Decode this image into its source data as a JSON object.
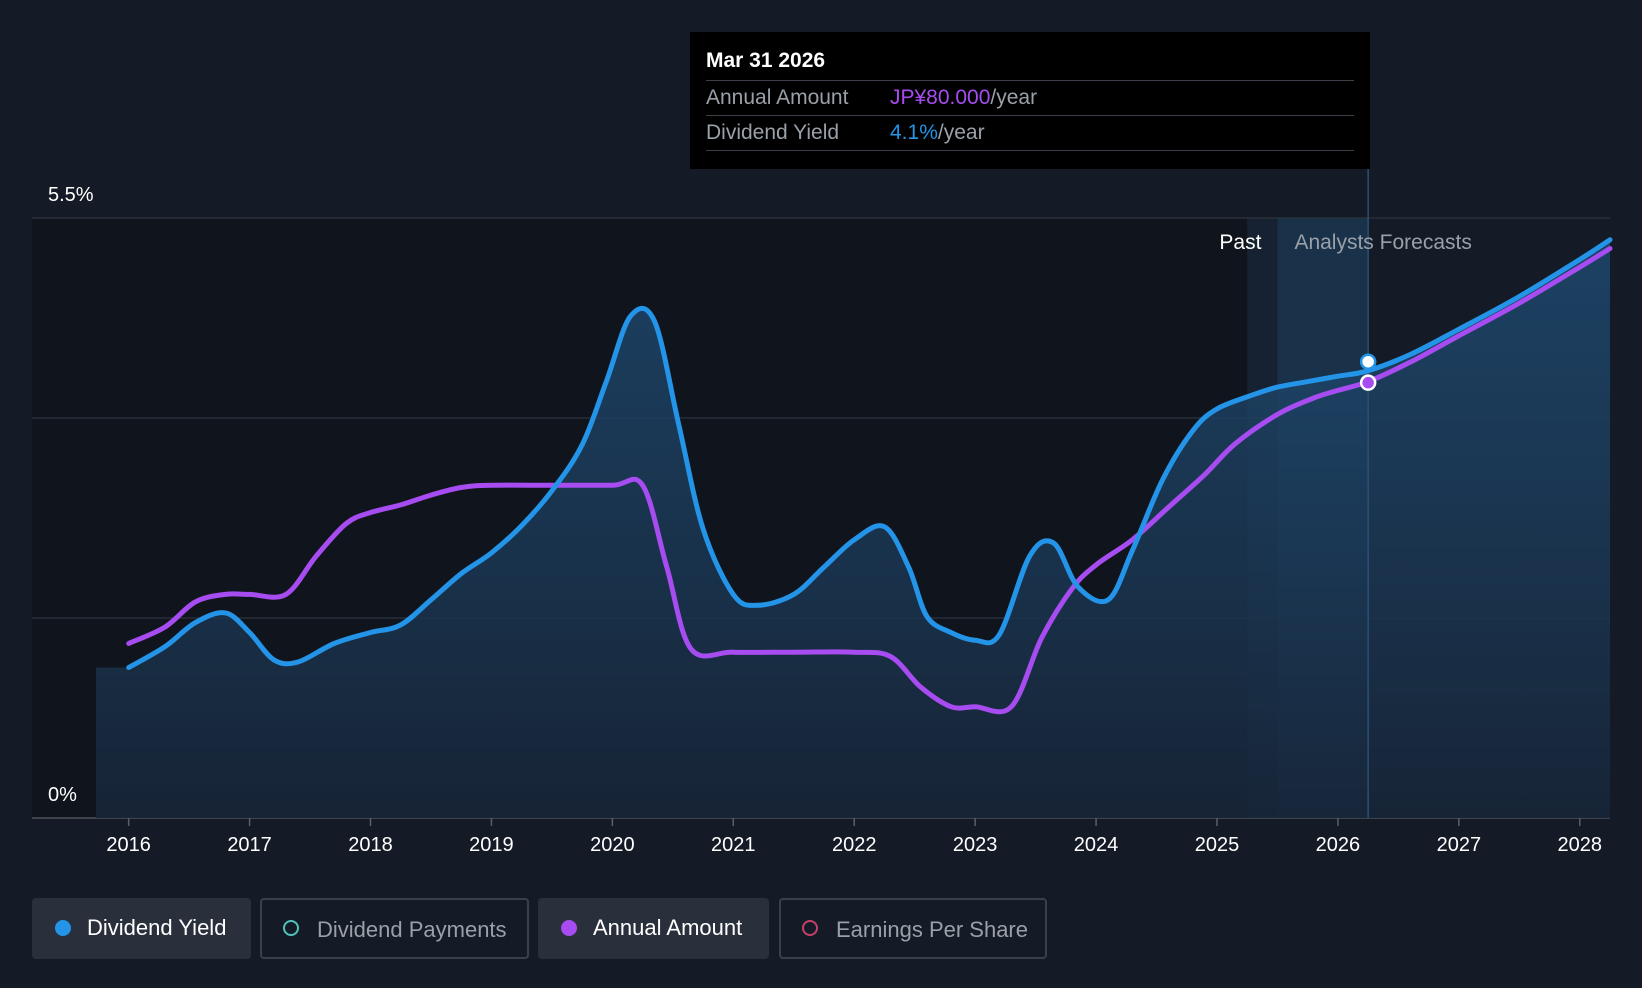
{
  "tooltip": {
    "date": "Mar 31 2026",
    "annual_amount_label": "Annual Amount",
    "annual_amount_value": "JP¥80.000",
    "annual_amount_unit": "/year",
    "dividend_yield_label": "Dividend Yield",
    "dividend_yield_value": "4.1%",
    "dividend_yield_unit": "/year"
  },
  "regions": {
    "past": "Past",
    "forecast": "Analysts Forecasts"
  },
  "legend": [
    {
      "label": "Dividend Yield",
      "color": "#2394e8",
      "active": true,
      "filled": true
    },
    {
      "label": "Dividend Payments",
      "color": "#4fc3b8",
      "active": false,
      "filled": false
    },
    {
      "label": "Annual Amount",
      "color": "#a64cf0",
      "active": true,
      "filled": true
    },
    {
      "label": "Earnings Per Share",
      "color": "#c2406b",
      "active": false,
      "filled": false
    }
  ],
  "colors": {
    "yield": "#2394e8",
    "amount": "#a64cf0",
    "background": "#151b26"
  },
  "chart_data": {
    "type": "line",
    "x_ticks": [
      "2016",
      "2017",
      "2018",
      "2019",
      "2020",
      "2021",
      "2022",
      "2023",
      "2024",
      "2025",
      "2026",
      "2027",
      "2028"
    ],
    "y_tick_labels": [
      "0%",
      "5.5%"
    ],
    "ylim": [
      0,
      5.5
    ],
    "xlim": [
      2015.73,
      2028.25
    ],
    "past_end": 2025.25,
    "forecast_start": 2025.5,
    "highlight_x": 2026.25,
    "grid": true,
    "legend_position": "bottom",
    "series": [
      {
        "name": "Dividend Yield",
        "unit": "%",
        "points": [
          [
            2016.0,
            1.38
          ],
          [
            2016.3,
            1.57
          ],
          [
            2016.55,
            1.79
          ],
          [
            2016.8,
            1.88
          ],
          [
            2017.0,
            1.7
          ],
          [
            2017.2,
            1.45
          ],
          [
            2017.4,
            1.43
          ],
          [
            2017.7,
            1.6
          ],
          [
            2018.0,
            1.7
          ],
          [
            2018.25,
            1.77
          ],
          [
            2018.5,
            2.0
          ],
          [
            2018.75,
            2.24
          ],
          [
            2019.0,
            2.43
          ],
          [
            2019.25,
            2.68
          ],
          [
            2019.5,
            3.0
          ],
          [
            2019.75,
            3.42
          ],
          [
            2019.95,
            4.0
          ],
          [
            2020.15,
            4.6
          ],
          [
            2020.35,
            4.55
          ],
          [
            2020.55,
            3.6
          ],
          [
            2020.75,
            2.65
          ],
          [
            2021.0,
            2.05
          ],
          [
            2021.2,
            1.95
          ],
          [
            2021.5,
            2.05
          ],
          [
            2021.75,
            2.3
          ],
          [
            2022.0,
            2.55
          ],
          [
            2022.25,
            2.67
          ],
          [
            2022.45,
            2.3
          ],
          [
            2022.6,
            1.85
          ],
          [
            2022.8,
            1.7
          ],
          [
            2023.0,
            1.63
          ],
          [
            2023.2,
            1.68
          ],
          [
            2023.45,
            2.4
          ],
          [
            2023.65,
            2.52
          ],
          [
            2023.85,
            2.12
          ],
          [
            2024.1,
            2.0
          ],
          [
            2024.3,
            2.45
          ],
          [
            2024.55,
            3.1
          ],
          [
            2024.8,
            3.55
          ],
          [
            2025.0,
            3.75
          ],
          [
            2025.3,
            3.88
          ],
          [
            2025.5,
            3.95
          ],
          [
            2025.75,
            4.0
          ],
          [
            2026.0,
            4.05
          ],
          [
            2026.25,
            4.1
          ],
          [
            2026.6,
            4.25
          ],
          [
            2027.0,
            4.48
          ],
          [
            2027.5,
            4.78
          ],
          [
            2028.0,
            5.12
          ],
          [
            2028.25,
            5.3
          ]
        ]
      },
      {
        "name": "Annual Amount",
        "unit": "JP¥",
        "points": [
          [
            2016.0,
            1.6
          ],
          [
            2016.3,
            1.75
          ],
          [
            2016.55,
            1.98
          ],
          [
            2016.8,
            2.05
          ],
          [
            2017.0,
            2.05
          ],
          [
            2017.3,
            2.05
          ],
          [
            2017.55,
            2.4
          ],
          [
            2017.8,
            2.7
          ],
          [
            2018.0,
            2.8
          ],
          [
            2018.25,
            2.87
          ],
          [
            2018.5,
            2.96
          ],
          [
            2018.75,
            3.03
          ],
          [
            2019.0,
            3.05
          ],
          [
            2019.5,
            3.05
          ],
          [
            2020.0,
            3.05
          ],
          [
            2020.25,
            3.05
          ],
          [
            2020.45,
            2.3
          ],
          [
            2020.65,
            1.55
          ],
          [
            2021.0,
            1.52
          ],
          [
            2021.5,
            1.52
          ],
          [
            2022.0,
            1.52
          ],
          [
            2022.3,
            1.48
          ],
          [
            2022.55,
            1.2
          ],
          [
            2022.8,
            1.02
          ],
          [
            2023.0,
            1.02
          ],
          [
            2023.3,
            1.02
          ],
          [
            2023.55,
            1.65
          ],
          [
            2023.8,
            2.1
          ],
          [
            2024.0,
            2.32
          ],
          [
            2024.3,
            2.55
          ],
          [
            2024.6,
            2.85
          ],
          [
            2024.9,
            3.15
          ],
          [
            2025.15,
            3.43
          ],
          [
            2025.5,
            3.7
          ],
          [
            2025.8,
            3.85
          ],
          [
            2026.0,
            3.92
          ],
          [
            2026.25,
            4.0
          ],
          [
            2026.6,
            4.18
          ],
          [
            2027.0,
            4.42
          ],
          [
            2027.5,
            4.72
          ],
          [
            2028.0,
            5.05
          ],
          [
            2028.25,
            5.22
          ]
        ]
      }
    ]
  }
}
